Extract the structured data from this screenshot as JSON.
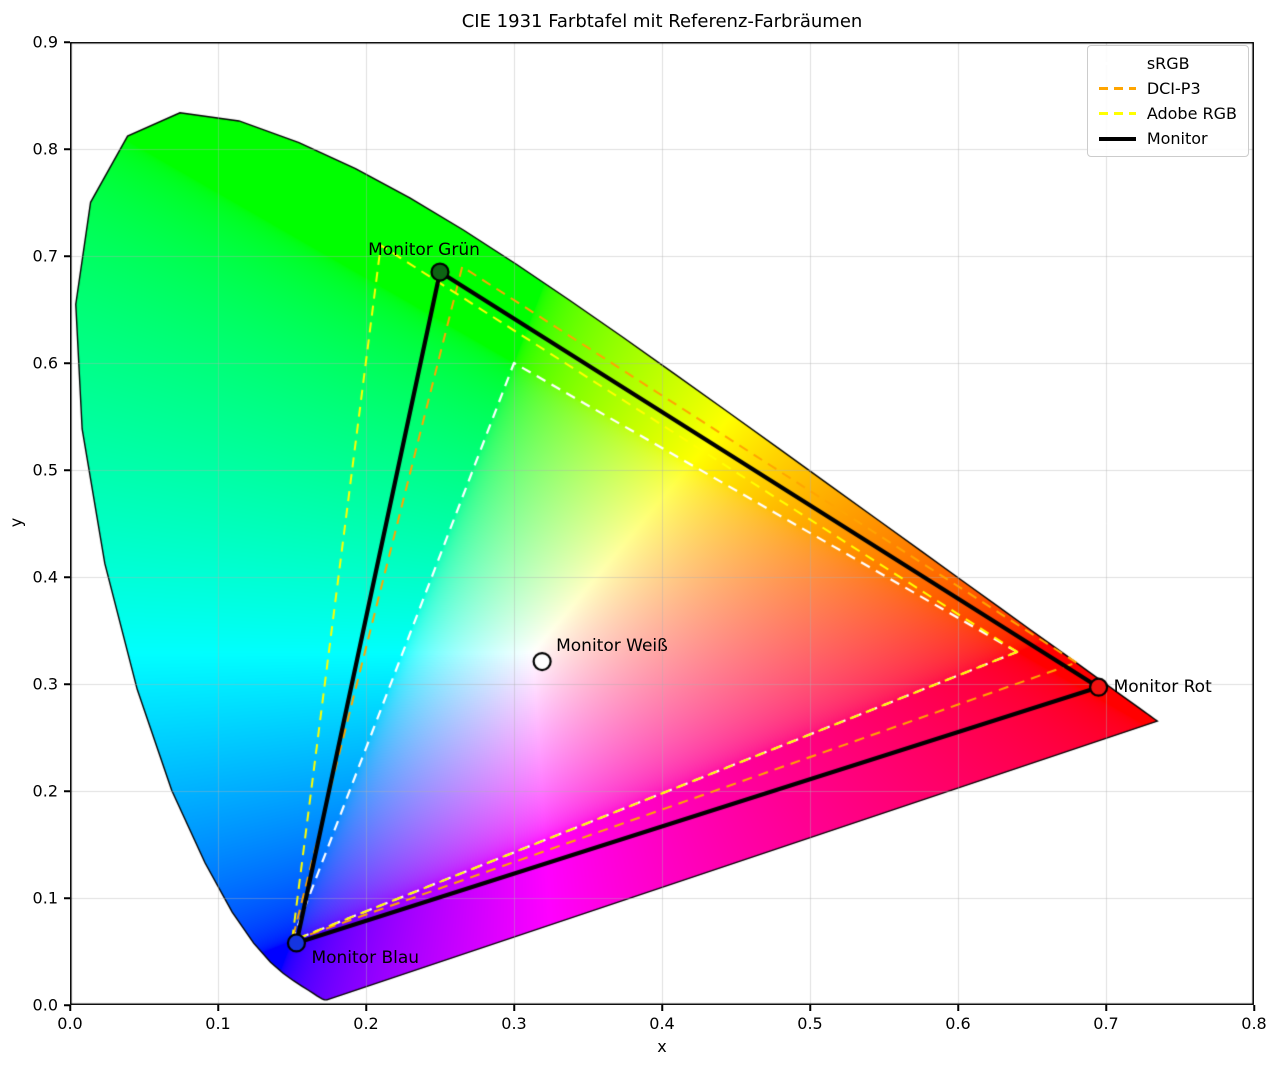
{
  "chart_data": {
    "type": "scatter",
    "subtype": "cie-1931-chromaticity-diagram",
    "title": "CIE 1931 Farbtafel mit Referenz-Farbräumen",
    "xlabel": "x",
    "ylabel": "y",
    "xlim": [
      0.0,
      0.8
    ],
    "ylim": [
      0.0,
      0.9
    ],
    "xticks": [
      "0.0",
      "0.1",
      "0.2",
      "0.3",
      "0.4",
      "0.5",
      "0.6",
      "0.7",
      "0.8"
    ],
    "yticks": [
      "0.0",
      "0.1",
      "0.2",
      "0.3",
      "0.4",
      "0.5",
      "0.6",
      "0.7",
      "0.8",
      "0.9"
    ],
    "grid": true,
    "legend_position": "upper right",
    "series": [
      {
        "name": "sRGB",
        "color": "#ffffff",
        "style": "dashed",
        "width": 2.2,
        "vertices": [
          [
            0.64,
            0.33
          ],
          [
            0.3,
            0.6
          ],
          [
            0.15,
            0.06
          ]
        ]
      },
      {
        "name": "DCI-P3",
        "color": "#ffa500",
        "style": "dashed",
        "width": 2.0,
        "vertices": [
          [
            0.68,
            0.32
          ],
          [
            0.265,
            0.69
          ],
          [
            0.15,
            0.06
          ]
        ]
      },
      {
        "name": "Adobe RGB",
        "color": "#ffff00",
        "style": "dashed",
        "width": 2.0,
        "vertices": [
          [
            0.64,
            0.33
          ],
          [
            0.21,
            0.71
          ],
          [
            0.15,
            0.06
          ]
        ]
      },
      {
        "name": "Monitor",
        "color": "#000000",
        "style": "solid",
        "width": 4.2,
        "vertices": [
          [
            0.695,
            0.297
          ],
          [
            0.25,
            0.685
          ],
          [
            0.153,
            0.058
          ]
        ]
      }
    ],
    "points": [
      {
        "label": "Monitor Grün",
        "x": 0.25,
        "y": 0.685,
        "color": "#0e6414",
        "anchor": "above"
      },
      {
        "label": "Monitor Rot",
        "x": 0.695,
        "y": 0.297,
        "color": "#f01010",
        "anchor": "right"
      },
      {
        "label": "Monitor Blau",
        "x": 0.153,
        "y": 0.058,
        "color": "#1535e0",
        "anchor": "below-right"
      },
      {
        "label": "Monitor Weiß",
        "x": 0.319,
        "y": 0.321,
        "color": "#ffffff",
        "anchor": "upper-right"
      }
    ],
    "spectral_locus": [
      [
        0.1741,
        0.005
      ],
      [
        0.174,
        0.005
      ],
      [
        0.1738,
        0.0049
      ],
      [
        0.1736,
        0.0049
      ],
      [
        0.1733,
        0.0048
      ],
      [
        0.173,
        0.0048
      ],
      [
        0.1726,
        0.0048
      ],
      [
        0.1721,
        0.0048
      ],
      [
        0.1714,
        0.0051
      ],
      [
        0.1703,
        0.0058
      ],
      [
        0.1689,
        0.0069
      ],
      [
        0.1669,
        0.0086
      ],
      [
        0.1644,
        0.0109
      ],
      [
        0.1611,
        0.0138
      ],
      [
        0.1566,
        0.0177
      ],
      [
        0.151,
        0.0227
      ],
      [
        0.144,
        0.0297
      ],
      [
        0.1355,
        0.0399
      ],
      [
        0.1241,
        0.0578
      ],
      [
        0.1096,
        0.0868
      ],
      [
        0.0913,
        0.1327
      ],
      [
        0.0687,
        0.2007
      ],
      [
        0.0454,
        0.295
      ],
      [
        0.0235,
        0.4127
      ],
      [
        0.0082,
        0.5384
      ],
      [
        0.0039,
        0.6548
      ],
      [
        0.0139,
        0.7502
      ],
      [
        0.0389,
        0.812
      ],
      [
        0.0743,
        0.8338
      ],
      [
        0.1142,
        0.8262
      ],
      [
        0.1547,
        0.8059
      ],
      [
        0.1929,
        0.7816
      ],
      [
        0.2296,
        0.7543
      ],
      [
        0.2658,
        0.7243
      ],
      [
        0.3016,
        0.6923
      ],
      [
        0.3373,
        0.6589
      ],
      [
        0.3731,
        0.6245
      ],
      [
        0.4087,
        0.5896
      ],
      [
        0.4441,
        0.5547
      ],
      [
        0.4788,
        0.5202
      ],
      [
        0.5125,
        0.4866
      ],
      [
        0.5448,
        0.4544
      ],
      [
        0.5752,
        0.4242
      ],
      [
        0.6029,
        0.3965
      ],
      [
        0.627,
        0.3725
      ],
      [
        0.6482,
        0.3514
      ],
      [
        0.6658,
        0.334
      ],
      [
        0.6801,
        0.3197
      ],
      [
        0.6915,
        0.3083
      ],
      [
        0.7006,
        0.2993
      ],
      [
        0.7079,
        0.292
      ],
      [
        0.714,
        0.2859
      ],
      [
        0.719,
        0.2809
      ],
      [
        0.723,
        0.277
      ],
      [
        0.726,
        0.274
      ],
      [
        0.7283,
        0.2717
      ],
      [
        0.73,
        0.27
      ],
      [
        0.7311,
        0.2689
      ],
      [
        0.732,
        0.268
      ],
      [
        0.7327,
        0.2673
      ],
      [
        0.7334,
        0.2666
      ],
      [
        0.734,
        0.266
      ],
      [
        0.7344,
        0.2656
      ],
      [
        0.7347,
        0.2653
      ]
    ]
  }
}
